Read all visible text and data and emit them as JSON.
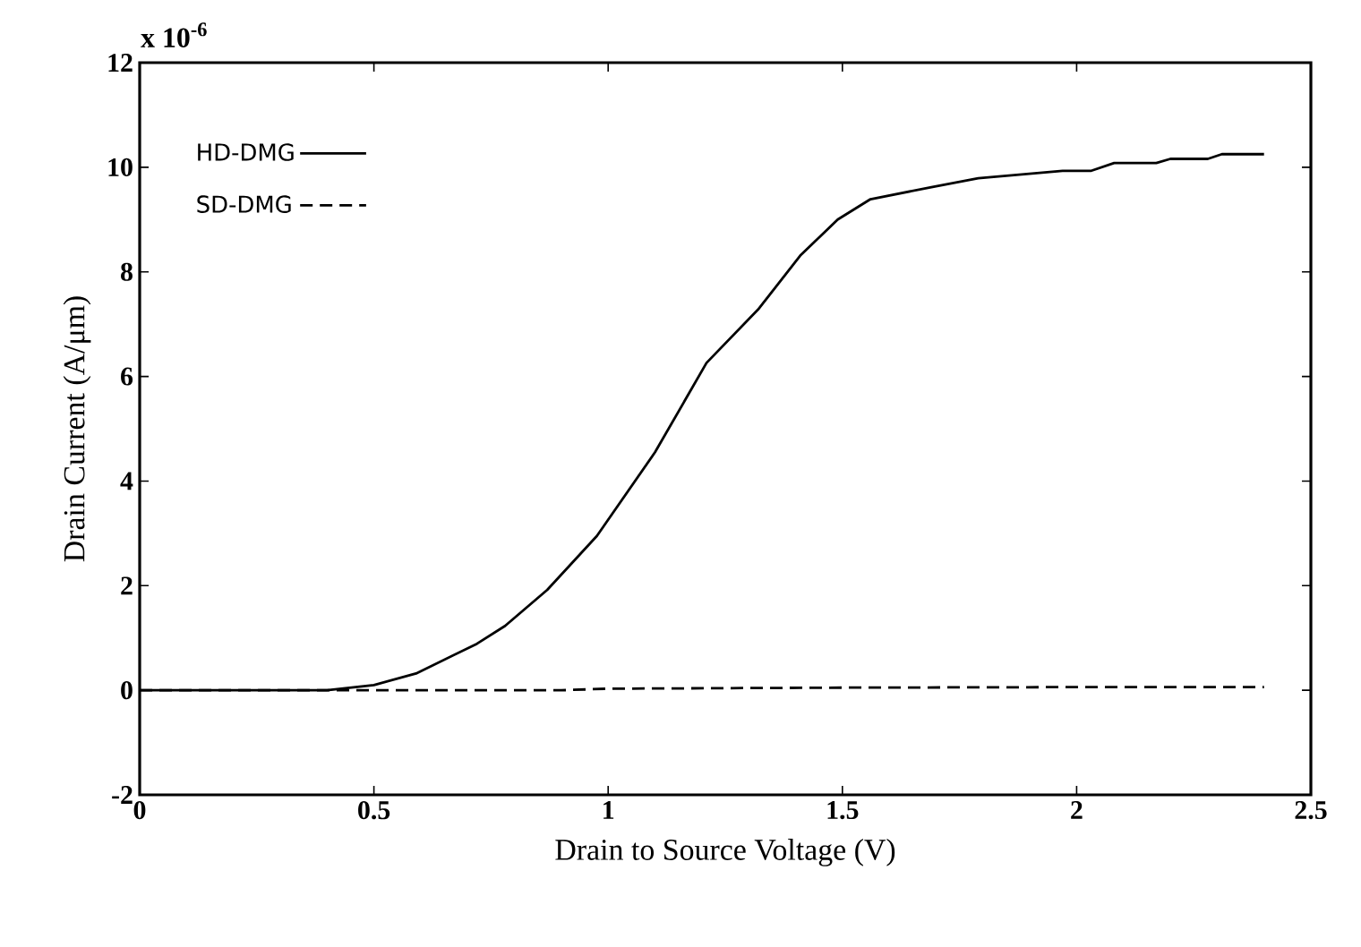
{
  "chart_data": {
    "type": "line",
    "xlabel": "Drain to Source Voltage (V)",
    "ylabel": "Drain Current (A/μm)",
    "annotations": [
      "x 10$^{-6}$"
    ],
    "xlim": [
      0,
      2.5
    ],
    "ylim": [
      -2,
      12
    ],
    "xticks": [
      0,
      0.5,
      1,
      1.5,
      2,
      2.5
    ],
    "yticks": [
      -2,
      0,
      2,
      4,
      6,
      8,
      10,
      12
    ],
    "legend": "top left",
    "grid": false,
    "marker": "none",
    "series": [
      {
        "name": "HD-DMG",
        "color": "#000000",
        "line_style": "solid",
        "x": [
          0,
          0.2,
          0.4,
          0.5,
          0.59,
          0.72,
          0.78,
          0.87,
          0.976,
          1.1,
          1.21,
          1.32,
          1.41,
          1.49,
          1.56,
          1.69,
          1.79,
          1.97,
          2.03,
          2.08,
          2.17,
          2.2,
          2.28,
          2.31,
          2.4
        ],
        "values": [
          0,
          0,
          0,
          0.1,
          0.32,
          0.89,
          1.23,
          1.92,
          2.95,
          4.55,
          6.26,
          7.28,
          8.31,
          9.0,
          9.39,
          9.62,
          9.79,
          9.93,
          9.93,
          10.08,
          10.08,
          10.16,
          10.16,
          10.25,
          10.25
        ]
      },
      {
        "name": "SD-DMG",
        "color": "#000000",
        "line_style": "dashed",
        "x": [
          0,
          0.5,
          0.9,
          1.0,
          1.5,
          2.0,
          2.4
        ],
        "values": [
          0,
          0,
          0,
          0.03,
          0.05,
          0.06,
          0.06
        ]
      }
    ]
  }
}
